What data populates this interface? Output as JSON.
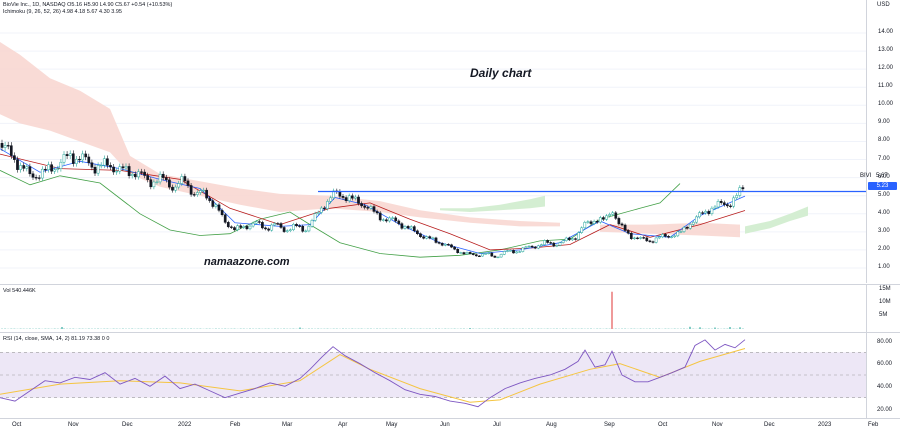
{
  "header": {
    "symbol_line": "BioVie Inc., 1D, NASDAQ  O5.16  H5.90  L4.90  C5.67  +0.54 (+10.53%)",
    "ichimoku_line": "Ichimoku (9, 26, 52, 26)  4.98  4.18  5.67  4.30  3.95",
    "vol_line": "Vol  540.446K",
    "rsi_line": "RSI (14, close, SMA, 14, 2)  81.19  73.38  0  0"
  },
  "annotations": {
    "title": "Daily chart",
    "watermark": "namaazone.com"
  },
  "price_axis": {
    "currency": "USD",
    "ticks": [
      "14.00",
      "13.00",
      "12.00",
      "11.00",
      "10.00",
      "9.00",
      "8.00",
      "7.00",
      "6.00",
      "5.00",
      "4.00",
      "3.00",
      "2.00",
      "1.00"
    ],
    "ticker_tag": "BIVI",
    "last_value": "5.67",
    "level_badge": "5.23"
  },
  "volume_axis": {
    "ticks": [
      "15M",
      "10M",
      "5M"
    ]
  },
  "rsi_axis": {
    "ticks": [
      "80.00",
      "60.00",
      "40.00",
      "20.00"
    ]
  },
  "time_axis": {
    "labels": [
      "Oct",
      "Nov",
      "Dec",
      "2022",
      "Feb",
      "Mar",
      "Apr",
      "May",
      "Jun",
      "Jul",
      "Aug",
      "Sep",
      "Oct",
      "Nov",
      "Dec",
      "2023",
      "Feb"
    ]
  },
  "colors": {
    "up": "#26a69a",
    "down": "#131722",
    "tenkan": "#2962ff",
    "kijun": "#b71c1c",
    "lagging": "#43a047",
    "cloud_bear": "#f8d7d2",
    "cloud_bull": "#cfeccd",
    "rsi": "#7e57c2",
    "rsi_ma": "#f5c542",
    "rsi_band": "#ede7f6",
    "resistance": "#2962ff"
  },
  "chart_data": {
    "type": "candlestick",
    "resistance_level": 5.23,
    "last_close": 5.67,
    "price_ylim": [
      0.5,
      15
    ],
    "rsi_ylim": [
      15,
      90
    ],
    "rsi_bands": [
      70,
      30
    ],
    "price_path": [
      [
        0,
        7.9
      ],
      [
        15,
        7.0
      ],
      [
        30,
        6.1
      ],
      [
        45,
        6.3
      ],
      [
        60,
        6.8
      ],
      [
        70,
        7.2
      ],
      [
        80,
        7.1
      ],
      [
        95,
        6.6
      ],
      [
        110,
        6.7
      ],
      [
        120,
        6.4
      ],
      [
        135,
        6.3
      ],
      [
        150,
        5.8
      ],
      [
        165,
        5.9
      ],
      [
        175,
        5.4
      ],
      [
        185,
        5.9
      ],
      [
        195,
        5.0
      ],
      [
        205,
        5.2
      ],
      [
        215,
        4.4
      ],
      [
        225,
        3.6
      ],
      [
        235,
        3.1
      ],
      [
        245,
        3.3
      ],
      [
        255,
        3.5
      ],
      [
        265,
        3.2
      ],
      [
        275,
        3.4
      ],
      [
        285,
        3.1
      ],
      [
        295,
        3.3
      ],
      [
        305,
        3.1
      ],
      [
        315,
        3.8
      ],
      [
        325,
        4.6
      ],
      [
        335,
        5.1
      ],
      [
        345,
        5.0
      ],
      [
        355,
        4.7
      ],
      [
        365,
        4.5
      ],
      [
        375,
        4.0
      ],
      [
        385,
        3.7
      ],
      [
        395,
        3.6
      ],
      [
        405,
        3.3
      ],
      [
        415,
        3.0
      ],
      [
        425,
        2.7
      ],
      [
        435,
        2.5
      ],
      [
        445,
        2.3
      ],
      [
        455,
        2.0
      ],
      [
        465,
        1.8
      ],
      [
        475,
        1.7
      ],
      [
        485,
        1.8
      ],
      [
        495,
        1.6
      ],
      [
        505,
        1.9
      ],
      [
        515,
        1.9
      ],
      [
        525,
        2.1
      ],
      [
        535,
        2.2
      ],
      [
        545,
        2.4
      ],
      [
        555,
        2.3
      ],
      [
        565,
        2.5
      ],
      [
        575,
        2.7
      ],
      [
        585,
        3.4
      ],
      [
        595,
        3.7
      ],
      [
        605,
        3.6
      ],
      [
        612,
        4.3
      ],
      [
        620,
        3.3
      ],
      [
        630,
        2.8
      ],
      [
        640,
        2.6
      ],
      [
        650,
        2.5
      ],
      [
        660,
        2.7
      ],
      [
        670,
        2.8
      ],
      [
        680,
        2.9
      ],
      [
        690,
        3.5
      ],
      [
        700,
        3.9
      ],
      [
        710,
        4.3
      ],
      [
        720,
        4.5
      ],
      [
        730,
        4.6
      ],
      [
        738,
        5.0
      ],
      [
        745,
        5.67
      ]
    ],
    "tenkan_path": [
      [
        0,
        7.6
      ],
      [
        40,
        6.3
      ],
      [
        80,
        6.9
      ],
      [
        120,
        6.5
      ],
      [
        160,
        5.9
      ],
      [
        200,
        5.4
      ],
      [
        235,
        3.5
      ],
      [
        280,
        3.3
      ],
      [
        310,
        3.4
      ],
      [
        335,
        4.9
      ],
      [
        365,
        4.5
      ],
      [
        400,
        3.4
      ],
      [
        440,
        2.4
      ],
      [
        480,
        1.8
      ],
      [
        520,
        2.0
      ],
      [
        560,
        2.4
      ],
      [
        600,
        3.6
      ],
      [
        630,
        2.9
      ],
      [
        670,
        2.7
      ],
      [
        700,
        3.9
      ],
      [
        745,
        4.98
      ]
    ],
    "kijun_path": [
      [
        0,
        7.3
      ],
      [
        60,
        6.5
      ],
      [
        120,
        6.4
      ],
      [
        180,
        5.9
      ],
      [
        230,
        4.3
      ],
      [
        280,
        3.4
      ],
      [
        330,
        4.3
      ],
      [
        370,
        4.6
      ],
      [
        410,
        3.7
      ],
      [
        450,
        2.9
      ],
      [
        490,
        2.0
      ],
      [
        530,
        2.1
      ],
      [
        570,
        2.3
      ],
      [
        610,
        3.4
      ],
      [
        650,
        2.7
      ],
      [
        700,
        3.4
      ],
      [
        745,
        4.18
      ]
    ],
    "lagging_path": [
      [
        0,
        6.4
      ],
      [
        30,
        5.6
      ],
      [
        60,
        6.1
      ],
      [
        100,
        5.7
      ],
      [
        140,
        4.0
      ],
      [
        170,
        3.1
      ],
      [
        200,
        2.8
      ],
      [
        230,
        2.9
      ],
      [
        260,
        3.7
      ],
      [
        290,
        4.1
      ],
      [
        310,
        3.4
      ],
      [
        340,
        2.4
      ],
      [
        380,
        1.8
      ],
      [
        420,
        1.6
      ],
      [
        460,
        1.7
      ],
      [
        500,
        2.0
      ],
      [
        540,
        2.5
      ],
      [
        570,
        2.6
      ],
      [
        600,
        3.7
      ],
      [
        640,
        4.3
      ],
      [
        660,
        4.6
      ],
      [
        680,
        5.67
      ]
    ],
    "cloud_bear_top": [
      [
        0,
        13.5
      ],
      [
        20,
        12.8
      ],
      [
        50,
        11.5
      ],
      [
        80,
        10.8
      ],
      [
        110,
        9.8
      ],
      [
        130,
        7.2
      ],
      [
        160,
        6.2
      ],
      [
        200,
        5.8
      ],
      [
        240,
        5.4
      ],
      [
        280,
        5.1
      ],
      [
        330,
        5.0
      ],
      [
        380,
        4.7
      ],
      [
        420,
        4.2
      ],
      [
        470,
        3.8
      ],
      [
        520,
        3.6
      ],
      [
        560,
        3.5
      ]
    ],
    "cloud_bear_bottom": [
      [
        560,
        3.3
      ],
      [
        520,
        3.3
      ],
      [
        470,
        3.5
      ],
      [
        420,
        3.8
      ],
      [
        380,
        4.1
      ],
      [
        330,
        4.3
      ],
      [
        280,
        4.1
      ],
      [
        240,
        4.5
      ],
      [
        200,
        5.0
      ],
      [
        160,
        5.5
      ],
      [
        130,
        6.2
      ],
      [
        110,
        7.4
      ],
      [
        80,
        8.0
      ],
      [
        50,
        8.6
      ],
      [
        20,
        9.0
      ],
      [
        0,
        9.5
      ]
    ],
    "cloud_bull_top": [
      [
        440,
        4.3
      ],
      [
        470,
        4.3
      ],
      [
        500,
        4.5
      ],
      [
        530,
        4.8
      ],
      [
        545,
        5.0
      ]
    ],
    "cloud_bull_bottom": [
      [
        545,
        4.4
      ],
      [
        530,
        4.3
      ],
      [
        500,
        4.2
      ],
      [
        470,
        4.1
      ],
      [
        440,
        4.2
      ]
    ],
    "cloud_future_bear_top": [
      [
        600,
        3.4
      ],
      [
        650,
        3.4
      ],
      [
        700,
        3.5
      ],
      [
        740,
        3.4
      ]
    ],
    "cloud_future_bear_bottom": [
      [
        740,
        2.7
      ],
      [
        700,
        2.8
      ],
      [
        650,
        2.9
      ],
      [
        600,
        3.0
      ]
    ],
    "cloud_future_bull_top": [
      [
        745,
        3.3
      ],
      [
        770,
        3.6
      ],
      [
        790,
        4.0
      ],
      [
        808,
        4.4
      ]
    ],
    "cloud_future_bull_bottom": [
      [
        808,
        3.9
      ],
      [
        790,
        3.6
      ],
      [
        770,
        3.2
      ],
      [
        745,
        2.9
      ]
    ],
    "rsi_path": [
      [
        0,
        30
      ],
      [
        15,
        27
      ],
      [
        30,
        36
      ],
      [
        45,
        45
      ],
      [
        60,
        43
      ],
      [
        75,
        48
      ],
      [
        90,
        46
      ],
      [
        105,
        52
      ],
      [
        120,
        42
      ],
      [
        135,
        47
      ],
      [
        150,
        40
      ],
      [
        165,
        49
      ],
      [
        180,
        38
      ],
      [
        195,
        42
      ],
      [
        210,
        36
      ],
      [
        225,
        30
      ],
      [
        240,
        34
      ],
      [
        255,
        38
      ],
      [
        270,
        43
      ],
      [
        285,
        40
      ],
      [
        300,
        47
      ],
      [
        310,
        55
      ],
      [
        322,
        66
      ],
      [
        333,
        75
      ],
      [
        345,
        67
      ],
      [
        360,
        60
      ],
      [
        375,
        52
      ],
      [
        390,
        45
      ],
      [
        405,
        37
      ],
      [
        420,
        33
      ],
      [
        435,
        31
      ],
      [
        450,
        27
      ],
      [
        465,
        25
      ],
      [
        478,
        22
      ],
      [
        490,
        30
      ],
      [
        505,
        38
      ],
      [
        520,
        43
      ],
      [
        535,
        47
      ],
      [
        550,
        50
      ],
      [
        565,
        55
      ],
      [
        578,
        62
      ],
      [
        585,
        72
      ],
      [
        595,
        57
      ],
      [
        605,
        59
      ],
      [
        612,
        71
      ],
      [
        622,
        50
      ],
      [
        635,
        44
      ],
      [
        648,
        44
      ],
      [
        660,
        48
      ],
      [
        672,
        52
      ],
      [
        685,
        57
      ],
      [
        695,
        76
      ],
      [
        705,
        81
      ],
      [
        715,
        72
      ],
      [
        725,
        77
      ],
      [
        735,
        74
      ],
      [
        745,
        81.19
      ]
    ],
    "rsi_ma_path": [
      [
        0,
        33
      ],
      [
        60,
        42
      ],
      [
        120,
        45
      ],
      [
        180,
        43
      ],
      [
        240,
        36
      ],
      [
        300,
        45
      ],
      [
        340,
        68
      ],
      [
        370,
        55
      ],
      [
        420,
        38
      ],
      [
        470,
        26
      ],
      [
        500,
        28
      ],
      [
        540,
        42
      ],
      [
        590,
        55
      ],
      [
        620,
        60
      ],
      [
        660,
        48
      ],
      [
        700,
        62
      ],
      [
        745,
        73.38
      ]
    ],
    "volume_spikes": [
      [
        612,
        15.2
      ],
      [
        62,
        0.8
      ],
      [
        300,
        0.6
      ],
      [
        470,
        0.4
      ],
      [
        690,
        0.9
      ],
      [
        700,
        0.7
      ],
      [
        715,
        0.6
      ],
      [
        730,
        0.8
      ],
      [
        740,
        0.7
      ]
    ]
  }
}
